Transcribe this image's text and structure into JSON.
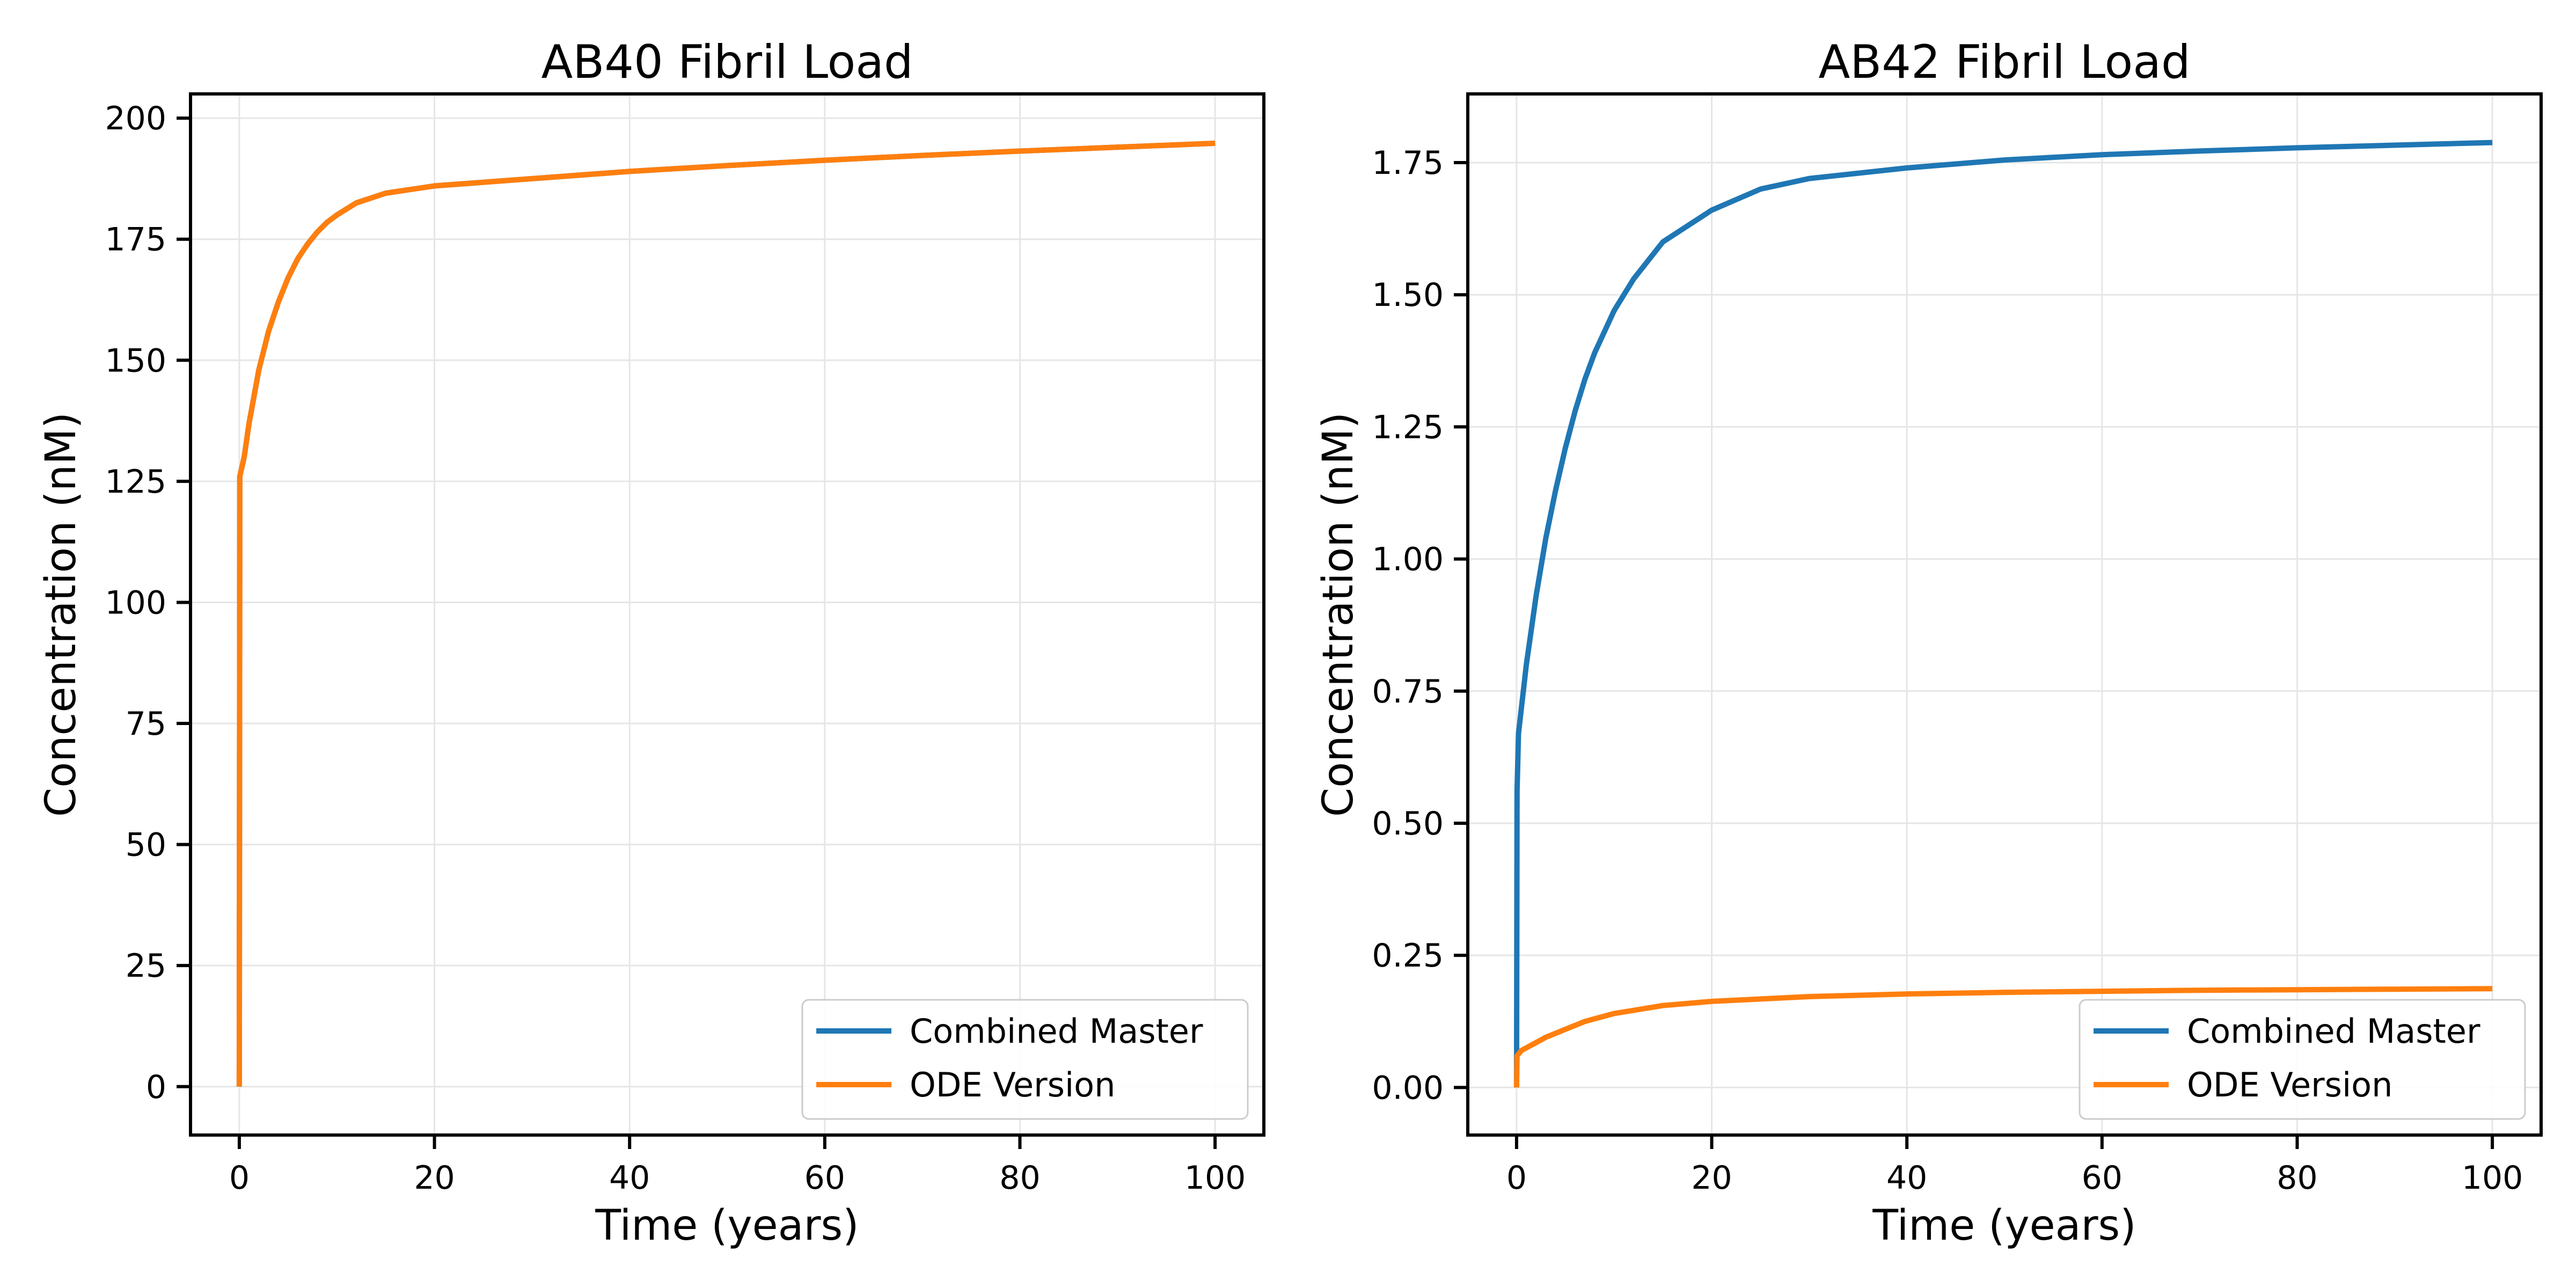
{
  "chart_data": [
    {
      "type": "line",
      "title": "AB40 Fibril Load",
      "xlabel": "Time (years)",
      "ylabel": "Concentration (nM)",
      "xlim": [
        -5,
        105
      ],
      "ylim": [
        -10,
        205
      ],
      "xticks": [
        0,
        20,
        40,
        60,
        80,
        100
      ],
      "yticks": [
        0,
        25,
        50,
        75,
        100,
        125,
        150,
        175,
        200
      ],
      "ytick_labels": [
        "0",
        "25",
        "50",
        "75",
        "100",
        "125",
        "150",
        "175",
        "200"
      ],
      "grid": true,
      "legend": "bottom-right",
      "series": [
        {
          "name": "Combined Master",
          "color": "#1f77b4",
          "x": [
            0,
            0.05,
            0.5,
            1,
            2,
            3,
            4,
            5,
            6,
            7,
            8,
            9,
            10,
            12,
            15,
            20,
            30,
            40,
            50,
            60,
            70,
            80,
            90,
            100
          ],
          "y": [
            0,
            126,
            130,
            137,
            148,
            156,
            162,
            167,
            171,
            174,
            176.5,
            178.5,
            180,
            182.5,
            184.5,
            186,
            187.5,
            189,
            190.2,
            191.3,
            192.3,
            193.2,
            194,
            194.8
          ]
        },
        {
          "name": "ODE Version",
          "color": "#ff7f0e",
          "x": [
            0,
            0.05,
            0.5,
            1,
            2,
            3,
            4,
            5,
            6,
            7,
            8,
            9,
            10,
            12,
            15,
            20,
            30,
            40,
            50,
            60,
            70,
            80,
            90,
            100
          ],
          "y": [
            0,
            126,
            130,
            137,
            148,
            156,
            162,
            167,
            171,
            174,
            176.5,
            178.5,
            180,
            182.5,
            184.5,
            186,
            187.5,
            189,
            190.2,
            191.3,
            192.3,
            193.2,
            194,
            194.8
          ]
        }
      ]
    },
    {
      "type": "line",
      "title": "AB42 Fibril Load",
      "xlabel": "Time (years)",
      "ylabel": "Concentration (nM)",
      "xlim": [
        -5,
        105
      ],
      "ylim": [
        -0.09,
        1.88
      ],
      "xticks": [
        0,
        20,
        40,
        60,
        80,
        100
      ],
      "yticks": [
        0,
        0.25,
        0.5,
        0.75,
        1.0,
        1.25,
        1.5,
        1.75
      ],
      "ytick_labels": [
        "0.00",
        "0.25",
        "0.50",
        "0.75",
        "1.00",
        "1.25",
        "1.50",
        "1.75"
      ],
      "grid": true,
      "legend": "bottom-right",
      "series": [
        {
          "name": "Combined Master",
          "color": "#1f77b4",
          "x": [
            0,
            0.05,
            0.2,
            1,
            2,
            3,
            4,
            5,
            6,
            7,
            8,
            10,
            12,
            15,
            20,
            25,
            30,
            40,
            50,
            60,
            70,
            80,
            90,
            100
          ],
          "y": [
            0,
            0.56,
            0.67,
            0.8,
            0.93,
            1.04,
            1.13,
            1.21,
            1.28,
            1.34,
            1.39,
            1.47,
            1.53,
            1.6,
            1.66,
            1.7,
            1.72,
            1.74,
            1.755,
            1.765,
            1.772,
            1.778,
            1.783,
            1.788
          ]
        },
        {
          "name": "ODE Version",
          "color": "#ff7f0e",
          "x": [
            0,
            0.05,
            0.5,
            1,
            2,
            3,
            5,
            7,
            10,
            15,
            20,
            30,
            40,
            50,
            60,
            70,
            80,
            90,
            100
          ],
          "y": [
            0,
            0.06,
            0.07,
            0.075,
            0.085,
            0.095,
            0.11,
            0.125,
            0.14,
            0.155,
            0.163,
            0.172,
            0.177,
            0.18,
            0.182,
            0.184,
            0.185,
            0.186,
            0.187
          ]
        }
      ]
    }
  ]
}
